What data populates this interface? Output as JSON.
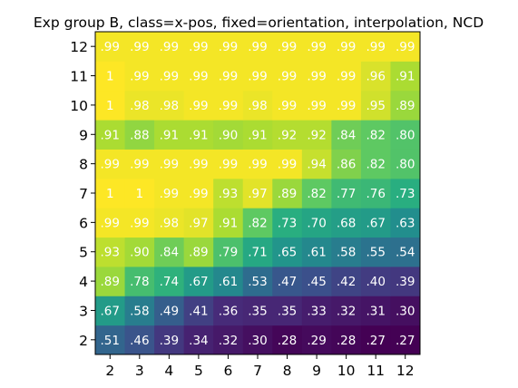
{
  "chart_data": {
    "type": "heatmap",
    "title": "Exp group B, class=x-pos, fixed=orientation, interpolation, NCD",
    "x_categories": [
      2,
      3,
      4,
      5,
      6,
      7,
      8,
      9,
      10,
      11,
      12
    ],
    "y_categories": [
      2,
      3,
      4,
      5,
      6,
      7,
      8,
      9,
      10,
      11,
      12
    ],
    "values": [
      [
        0.51,
        0.46,
        0.39,
        0.34,
        0.32,
        0.3,
        0.28,
        0.29,
        0.28,
        0.27,
        0.27
      ],
      [
        0.67,
        0.58,
        0.49,
        0.41,
        0.36,
        0.35,
        0.35,
        0.33,
        0.32,
        0.31,
        0.3
      ],
      [
        0.89,
        0.78,
        0.74,
        0.67,
        0.61,
        0.53,
        0.47,
        0.45,
        0.42,
        0.4,
        0.39
      ],
      [
        0.93,
        0.9,
        0.84,
        0.89,
        0.79,
        0.71,
        0.65,
        0.61,
        0.58,
        0.55,
        0.54
      ],
      [
        0.99,
        0.99,
        0.98,
        0.97,
        0.91,
        0.82,
        0.73,
        0.7,
        0.68,
        0.67,
        0.63
      ],
      [
        1,
        1,
        0.99,
        0.99,
        0.93,
        0.97,
        0.89,
        0.82,
        0.77,
        0.76,
        0.73
      ],
      [
        0.99,
        0.99,
        0.99,
        0.99,
        0.99,
        0.99,
        0.99,
        0.94,
        0.86,
        0.82,
        0.8
      ],
      [
        0.91,
        0.88,
        0.91,
        0.91,
        0.9,
        0.91,
        0.92,
        0.92,
        0.84,
        0.82,
        0.8
      ],
      [
        1,
        0.98,
        0.98,
        0.99,
        0.99,
        0.98,
        0.99,
        0.99,
        0.99,
        0.95,
        0.89
      ],
      [
        1,
        0.99,
        0.99,
        0.99,
        0.99,
        0.99,
        0.99,
        0.99,
        0.99,
        0.96,
        0.91
      ],
      [
        0.99,
        0.99,
        0.99,
        0.99,
        0.99,
        0.99,
        0.99,
        0.99,
        0.99,
        0.99,
        0.99
      ]
    ],
    "labels": [
      [
        ".51",
        ".46",
        ".39",
        ".34",
        ".32",
        ".30",
        ".28",
        ".29",
        ".28",
        ".27",
        ".27"
      ],
      [
        ".67",
        ".58",
        ".49",
        ".41",
        ".36",
        ".35",
        ".35",
        ".33",
        ".32",
        ".31",
        ".30"
      ],
      [
        ".89",
        ".78",
        ".74",
        ".67",
        ".61",
        ".53",
        ".47",
        ".45",
        ".42",
        ".40",
        ".39"
      ],
      [
        ".93",
        ".90",
        ".84",
        ".89",
        ".79",
        ".71",
        ".65",
        ".61",
        ".58",
        ".55",
        ".54"
      ],
      [
        ".99",
        ".99",
        ".98",
        ".97",
        ".91",
        ".82",
        ".73",
        ".70",
        ".68",
        ".67",
        ".63"
      ],
      [
        "1",
        "1",
        ".99",
        ".99",
        ".93",
        ".97",
        ".89",
        ".82",
        ".77",
        ".76",
        ".73"
      ],
      [
        ".99",
        ".99",
        ".99",
        ".99",
        ".99",
        ".99",
        ".99",
        ".94",
        ".86",
        ".82",
        ".80"
      ],
      [
        ".91",
        ".88",
        ".91",
        ".91",
        ".90",
        ".91",
        ".92",
        ".92",
        ".84",
        ".82",
        ".80"
      ],
      [
        "1",
        ".98",
        ".98",
        ".99",
        ".99",
        ".98",
        ".99",
        ".99",
        ".99",
        ".95",
        ".89"
      ],
      [
        "1",
        ".99",
        ".99",
        ".99",
        ".99",
        ".99",
        ".99",
        ".99",
        ".99",
        ".96",
        ".91"
      ],
      [
        ".99",
        ".99",
        ".99",
        ".99",
        ".99",
        ".99",
        ".99",
        ".99",
        ".99",
        ".99",
        ".99"
      ]
    ],
    "value_range": [
      0.27,
      1.0
    ],
    "colormap": "viridis",
    "label_color": "#ffffff",
    "grid": false,
    "colorbar": false
  }
}
